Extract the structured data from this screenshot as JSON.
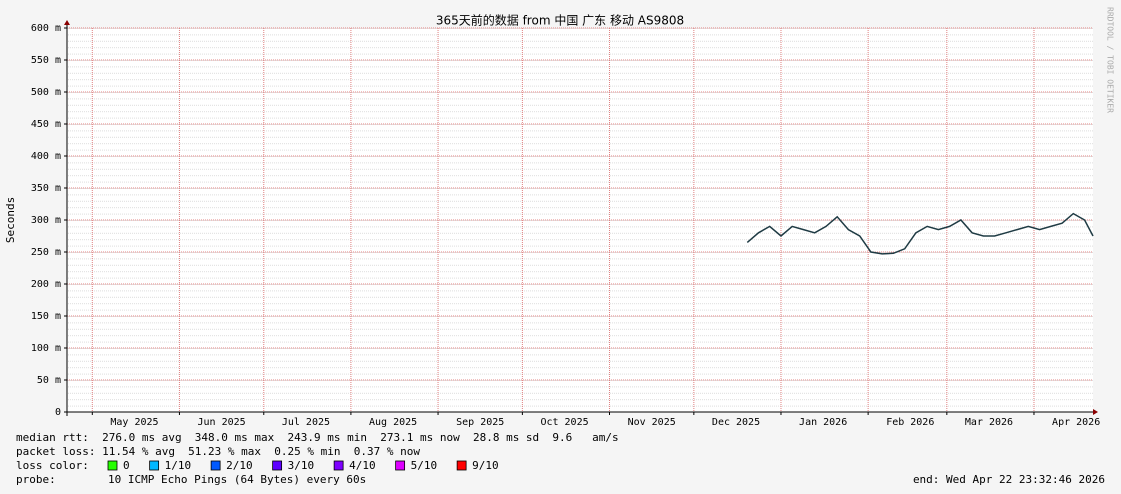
{
  "chart_data": {
    "type": "line",
    "title": "365天前的数据 from 中国 广东 移动 AS9808",
    "y_label": "Seconds",
    "watermark": "RRDTOOL / TOBI OETIKER",
    "xlim": [
      "2025-04-22",
      "2026-04-22"
    ],
    "xticks": [
      {
        "value": "2025-05-01",
        "label": "May 2025"
      },
      {
        "value": "2025-06-01",
        "label": "Jun 2025"
      },
      {
        "value": "2025-07-01",
        "label": "Jul 2025"
      },
      {
        "value": "2025-08-01",
        "label": "Aug 2025"
      },
      {
        "value": "2025-09-01",
        "label": "Sep 2025"
      },
      {
        "value": "2025-10-01",
        "label": "Oct 2025"
      },
      {
        "value": "2025-11-01",
        "label": "Nov 2025"
      },
      {
        "value": "2025-12-01",
        "label": "Dec 2025"
      },
      {
        "value": "2026-01-01",
        "label": "Jan 2026"
      },
      {
        "value": "2026-02-01",
        "label": "Feb 2026"
      },
      {
        "value": "2026-03-01",
        "label": "Mar 2026"
      },
      {
        "value": "2026-04-01",
        "label": "Apr 2026"
      }
    ],
    "ylim": [
      0,
      0.6
    ],
    "yticks": [
      0,
      {
        "value": 0.05,
        "label": "50 m"
      },
      {
        "value": 0.1,
        "label": "100 m"
      },
      {
        "value": 0.15,
        "label": "150 m"
      },
      {
        "value": 0.2,
        "label": "200 m"
      },
      {
        "value": 0.25,
        "label": "250 m"
      },
      {
        "value": 0.3,
        "label": "300 m"
      },
      {
        "value": 0.35,
        "label": "350 m"
      },
      {
        "value": 0.4,
        "label": "400 m"
      },
      {
        "value": 0.45,
        "label": "450 m"
      },
      {
        "value": 0.5,
        "label": "500 m"
      },
      {
        "value": 0.55,
        "label": "550 m"
      },
      {
        "value": 0.6,
        "label": "600 m"
      }
    ],
    "grid": true,
    "x": [
      "2025-12-20",
      "2025-12-24",
      "2025-12-28",
      "2026-01-01",
      "2026-01-05",
      "2026-01-09",
      "2026-01-13",
      "2026-01-17",
      "2026-01-21",
      "2026-01-25",
      "2026-01-29",
      "2026-02-02",
      "2026-02-06",
      "2026-02-10",
      "2026-02-14",
      "2026-02-18",
      "2026-02-22",
      "2026-02-26",
      "2026-03-02",
      "2026-03-06",
      "2026-03-10",
      "2026-03-14",
      "2026-03-18",
      "2026-03-22",
      "2026-03-26",
      "2026-03-30",
      "2026-04-03",
      "2026-04-07",
      "2026-04-11",
      "2026-04-15",
      "2026-04-19",
      "2026-04-22"
    ],
    "series": [
      {
        "name": "median rtt",
        "color": "#1f3b44",
        "values": [
          0.265,
          0.28,
          0.29,
          0.275,
          0.29,
          0.285,
          0.28,
          0.29,
          0.305,
          0.285,
          0.275,
          0.25,
          0.247,
          0.248,
          0.255,
          0.28,
          0.29,
          0.285,
          0.29,
          0.3,
          0.28,
          0.275,
          0.275,
          0.28,
          0.285,
          0.29,
          0.285,
          0.29,
          0.295,
          0.31,
          0.3,
          0.275
        ]
      }
    ],
    "stats_lines": [
      "median rtt:  276.0 ms avg  348.0 ms max  243.9 ms min  273.1 ms now  28.8 ms sd  9.6   am/s",
      "packet loss: 11.54 % avg  51.23 % max  0.25 % min  0.37 % now"
    ],
    "loss_color_label": "loss color:",
    "loss_colors": [
      {
        "label": "0",
        "color": "#26ff00"
      },
      {
        "label": "1/10",
        "color": "#00b8ff"
      },
      {
        "label": "2/10",
        "color": "#0059ff"
      },
      {
        "label": "3/10",
        "color": "#5e00ff"
      },
      {
        "label": "4/10",
        "color": "#7e00ff"
      },
      {
        "label": "5/10",
        "color": "#dd00ff"
      },
      {
        "label": "9/10",
        "color": "#ff0000"
      }
    ],
    "probe_label": "probe:",
    "probe": "10 ICMP Echo Pings (64 Bytes) every 60s",
    "end": "end: Wed Apr 22 23:32:46 2026"
  }
}
